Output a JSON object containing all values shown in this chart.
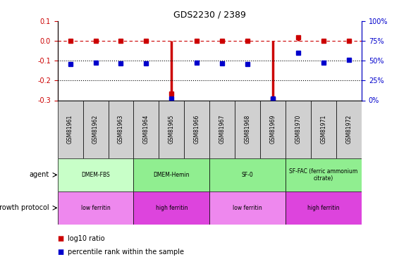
{
  "title": "GDS2230 / 2389",
  "samples": [
    "GSM81961",
    "GSM81962",
    "GSM81963",
    "GSM81964",
    "GSM81965",
    "GSM81966",
    "GSM81967",
    "GSM81968",
    "GSM81969",
    "GSM81970",
    "GSM81971",
    "GSM81972"
  ],
  "log10_ratio": [
    0.0,
    0.0,
    0.0,
    0.0,
    -0.265,
    0.0,
    0.0,
    0.0,
    -0.295,
    0.02,
    0.0,
    0.0
  ],
  "percentile_rank": [
    46,
    48,
    47,
    47,
    2,
    48,
    47,
    46,
    2,
    60,
    48,
    51
  ],
  "ylim_left": [
    -0.3,
    0.1
  ],
  "ylim_right": [
    0,
    100
  ],
  "left_yticks": [
    -0.3,
    -0.2,
    -0.1,
    0.0,
    0.1
  ],
  "right_yticks": [
    0,
    25,
    50,
    75,
    100
  ],
  "log10_color": "#cc0000",
  "percentile_color": "#0000cc",
  "sample_bg_color": "#d0d0d0",
  "agent_labels": [
    "DMEM-FBS",
    "DMEM-Hemin",
    "SF-0",
    "SF-FAC (ferric ammonium\ncitrate)"
  ],
  "agent_starts": [
    0,
    3,
    6,
    9
  ],
  "agent_ends": [
    3,
    6,
    9,
    12
  ],
  "agent_colors": [
    "#c8ffc8",
    "#90ee90",
    "#90ee90",
    "#90ee90"
  ],
  "growth_labels": [
    "low ferritin",
    "high ferritin",
    "low ferritin",
    "high ferritin"
  ],
  "growth_starts": [
    0,
    3,
    6,
    9
  ],
  "growth_ends": [
    3,
    6,
    9,
    12
  ],
  "growth_colors": [
    "#ee88ee",
    "#dd44dd",
    "#ee88ee",
    "#dd44dd"
  ]
}
